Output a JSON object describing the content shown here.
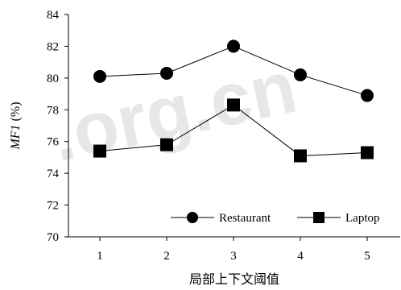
{
  "watermark": ".org.cn",
  "chart_data": {
    "type": "line",
    "x": [
      1,
      2,
      3,
      4,
      5
    ],
    "xlabel": "局部上下文阈值",
    "ylabel": "MF1 (%)",
    "ylabel_italic": "MF1",
    "ylabel_suffix": " (%)",
    "ylim": [
      70,
      84
    ],
    "yticks": [
      70,
      72,
      74,
      76,
      78,
      80,
      82,
      84
    ],
    "grid": false,
    "legend_position": "bottom-right",
    "series": [
      {
        "name": "Restaurant",
        "marker": "circle",
        "color": "#000000",
        "values": [
          80.1,
          80.3,
          82.0,
          80.2,
          78.9
        ]
      },
      {
        "name": "Laptop",
        "marker": "square",
        "color": "#000000",
        "values": [
          75.4,
          75.8,
          78.3,
          75.1,
          75.3
        ]
      }
    ]
  }
}
